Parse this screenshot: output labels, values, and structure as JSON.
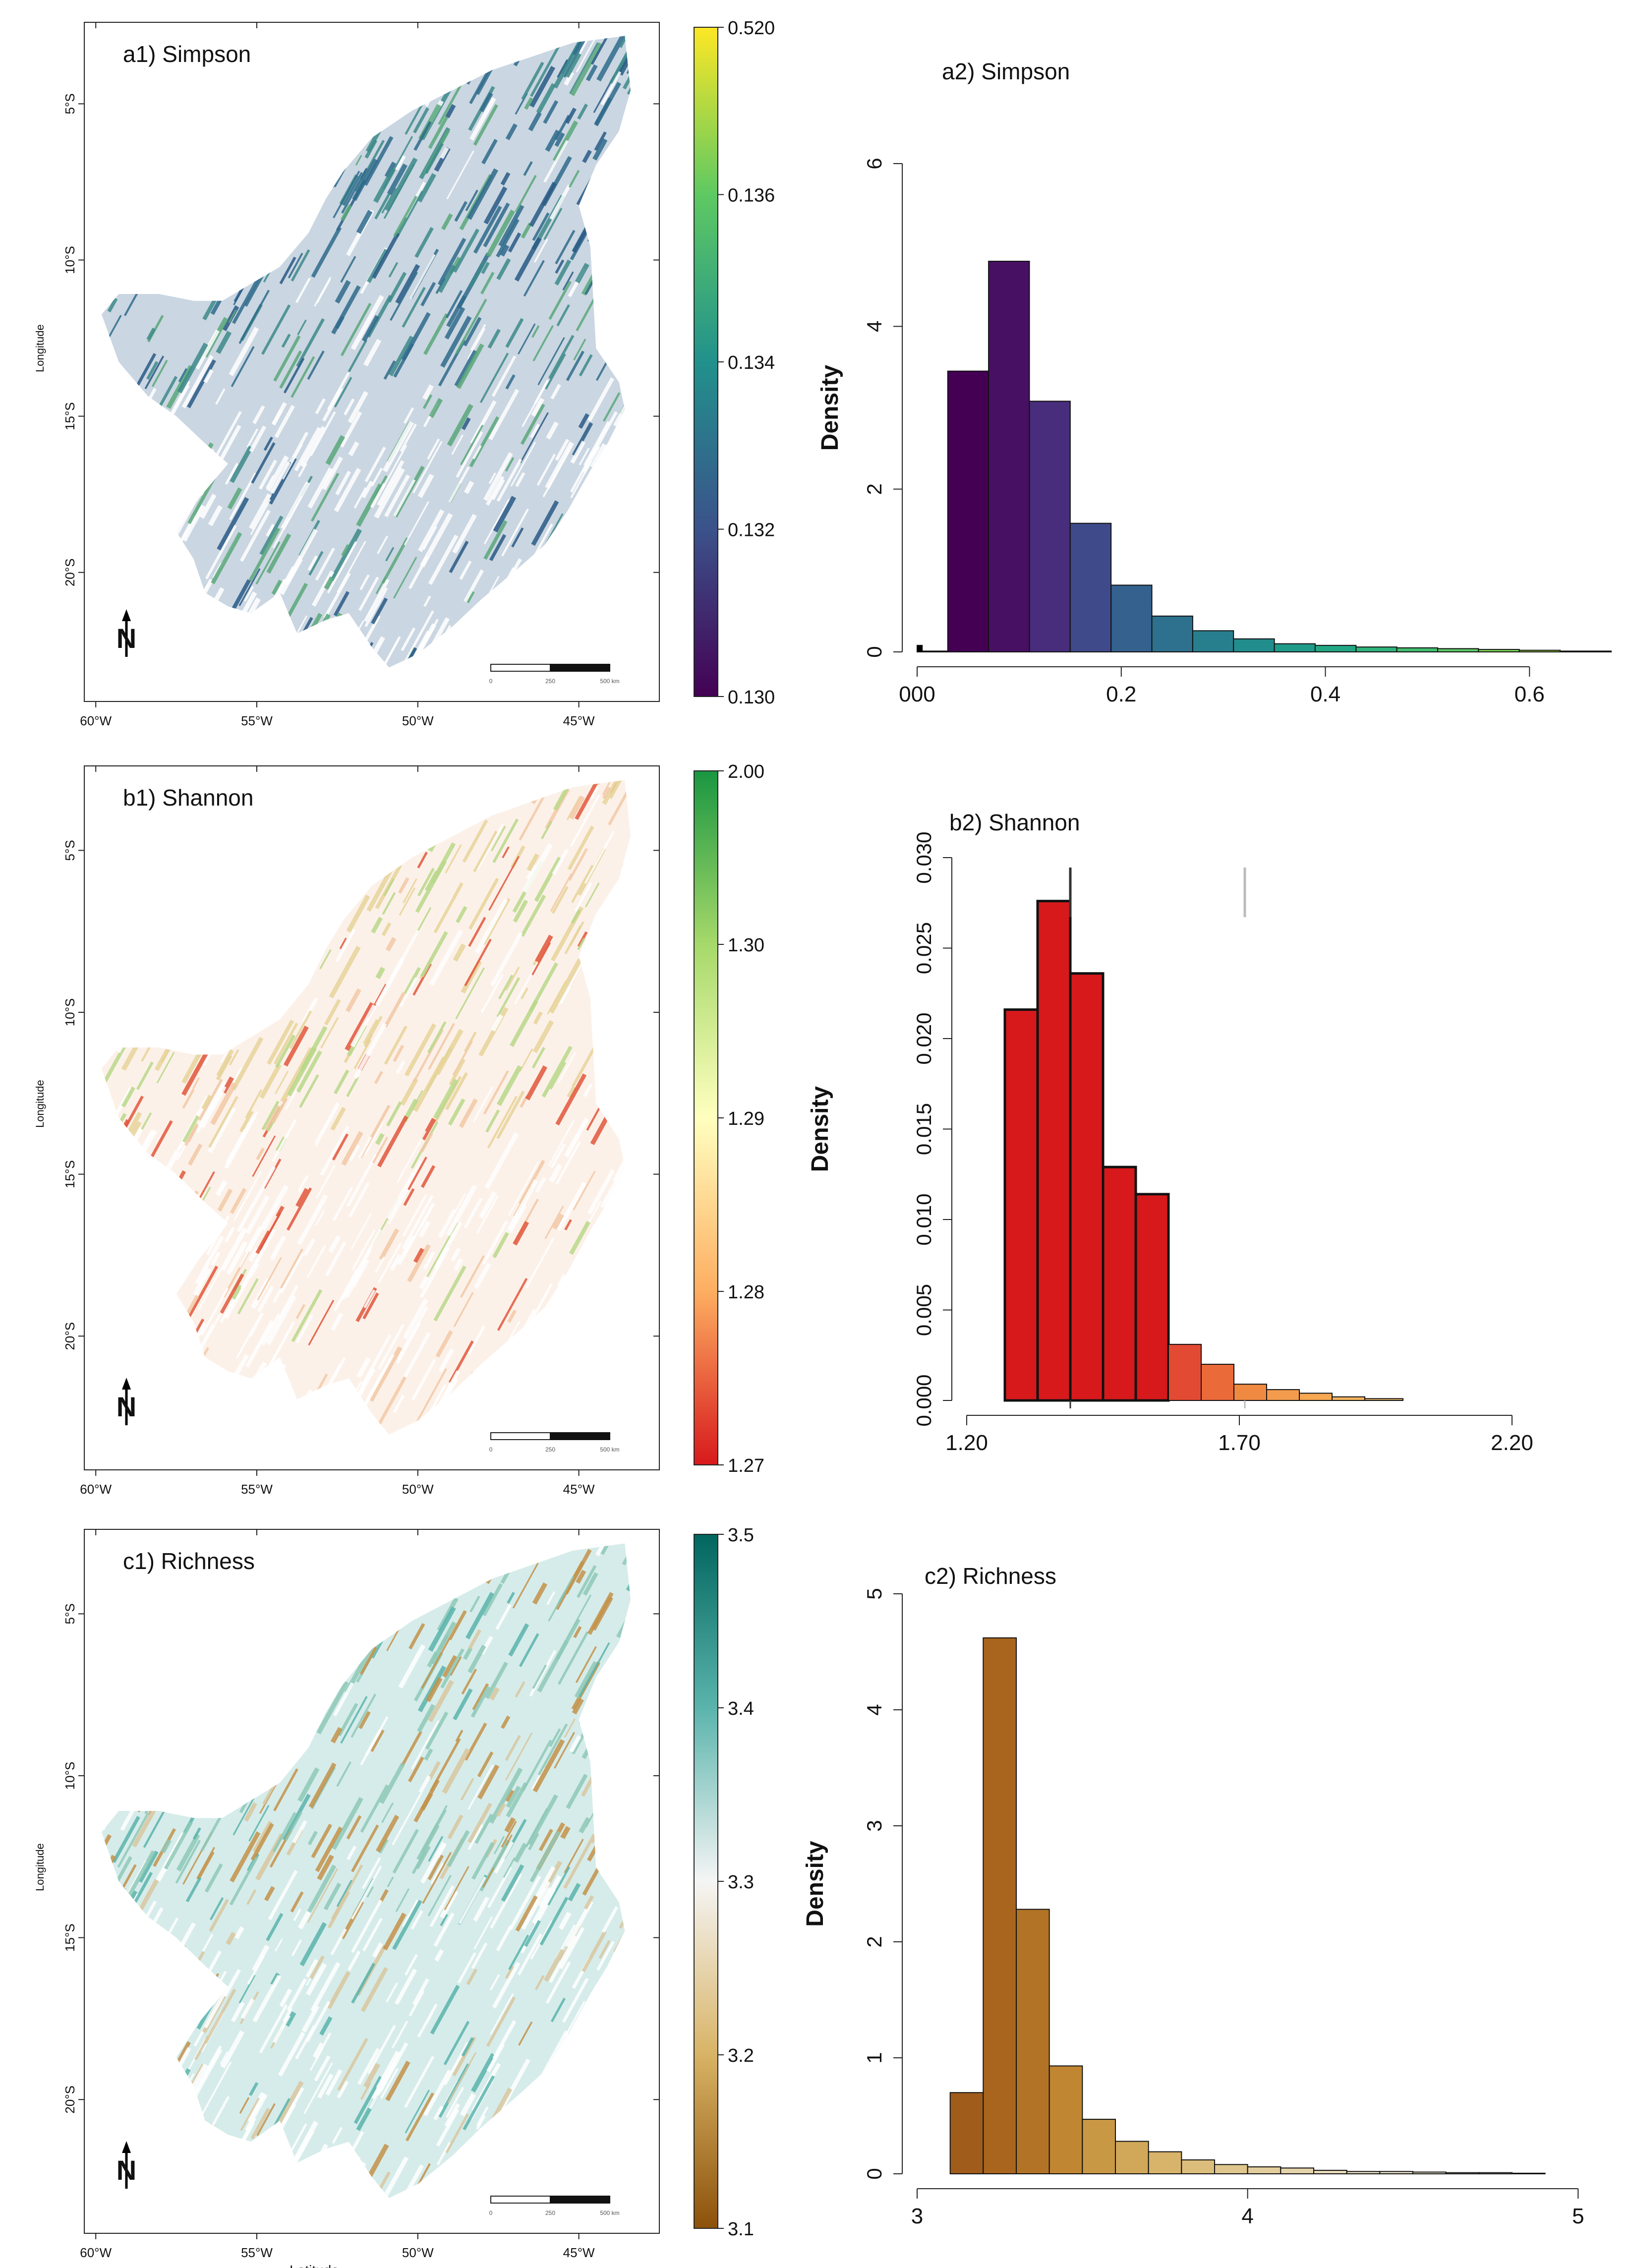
{
  "figure": {
    "panels": [
      {
        "map": {
          "title": "a1) Simpson",
          "ylabel": "Longitude",
          "xlabel": "",
          "lat_ticks": [
            "5°S",
            "10°S",
            "15°S",
            "20°S"
          ],
          "lon_ticks": [
            "60°W",
            "55°W",
            "50°W",
            "45°W"
          ],
          "colorbar": {
            "labels": [
              "0.520",
              "0.136",
              "0.134",
              "0.132",
              "0.130"
            ],
            "colors": [
              "#fde725",
              "#5ec962",
              "#21918c",
              "#3b528b",
              "#440154"
            ]
          },
          "scale_labels": [
            "0",
            "250",
            "500 km"
          ],
          "north_label": "N",
          "palette": [
            "#2f6b8c",
            "#3e8a8a",
            "#5aa87a",
            "#2a5a86",
            "#ffffff"
          ]
        },
        "chart_data": {
          "type": "bar",
          "title": "a2) Simpson",
          "ylabel": "Density",
          "xlabel": "",
          "xlim": [
            0.0,
            0.68
          ],
          "ylim": [
            0,
            6
          ],
          "xticks": [
            0.2,
            0.4,
            0.6
          ],
          "xtick_labels": [
            "0.2",
            "0.4",
            "0.6"
          ],
          "origin_label": "000",
          "yticks": [
            0,
            2,
            4,
            6
          ],
          "ytick_labels": [
            "0",
            "2",
            "4",
            "6"
          ],
          "bin_edges": [
            0.0,
            0.005,
            0.03,
            0.07,
            0.11,
            0.15,
            0.19,
            0.23,
            0.27,
            0.31,
            0.35,
            0.39,
            0.43,
            0.47,
            0.51,
            0.55,
            0.59,
            0.63,
            0.68
          ],
          "values": [
            0.08,
            0.01,
            3.45,
            4.8,
            3.08,
            1.58,
            0.82,
            0.44,
            0.26,
            0.16,
            0.1,
            0.08,
            0.06,
            0.05,
            0.04,
            0.03,
            0.02,
            0.01
          ],
          "colors": [
            "#000000",
            "#36006a",
            "#440154",
            "#471063",
            "#472d7b",
            "#3e4a89",
            "#34618d",
            "#2d718e",
            "#277f8e",
            "#228d8d",
            "#1f9b89",
            "#22a784",
            "#2fb47c",
            "#42be71",
            "#5ac864",
            "#7ad151",
            "#9cd83c",
            "#c0df25"
          ]
        }
      },
      {
        "map": {
          "title": "b1) Shannon",
          "ylabel": "Longitude",
          "xlabel": "",
          "lat_ticks": [
            "5°S",
            "10°S",
            "15°S",
            "20°S"
          ],
          "lon_ticks": [
            "60°W",
            "55°W",
            "50°W",
            "45°W"
          ],
          "colorbar": {
            "labels": [
              "2.00",
              "1.30",
              "1.29",
              "1.28",
              "1.27"
            ],
            "colors": [
              "#1a9641",
              "#a6d96a",
              "#ffffbf",
              "#fdae61",
              "#d7191c"
            ]
          },
          "scale_labels": [
            "0",
            "250",
            "500 km"
          ],
          "north_label": "N",
          "palette": [
            "#e7d49a",
            "#b9d98a",
            "#e2573c",
            "#f2c9a6",
            "#ffffff"
          ]
        },
        "chart_data": {
          "type": "bar",
          "title": "b2) Shannon",
          "ylabel": "Density",
          "xlabel": "",
          "xlim": [
            1.2,
            2.2
          ],
          "ylim": [
            0,
            0.03
          ],
          "xticks": [
            1.2,
            1.7,
            2.2
          ],
          "xtick_labels": [
            "1.20",
            "1.70",
            "2.20"
          ],
          "yticks": [
            0,
            0.005,
            0.01,
            0.015,
            0.02,
            0.025,
            0.03
          ],
          "ytick_labels": [
            "0.000",
            "0.005",
            "0.010",
            "0.015",
            "0.020",
            "0.025",
            "0.030"
          ],
          "bin_edges": [
            1.27,
            1.33,
            1.39,
            1.45,
            1.51,
            1.57,
            1.63,
            1.69,
            1.75,
            1.81,
            1.87,
            1.93,
            2.0
          ],
          "values": [
            0.0216,
            0.0276,
            0.0236,
            0.0129,
            0.0114,
            0.0031,
            0.002,
            0.0009,
            0.0006,
            0.0004,
            0.0002,
            0.0001
          ],
          "colors": [
            "#d7191c",
            "#d7191c",
            "#d7191c",
            "#d7191c",
            "#d7191c",
            "#e34a33",
            "#ea6a3a",
            "#f08a42",
            "#f49c4e",
            "#f7a853",
            "#f8b45e",
            "#f9c06b"
          ],
          "marks": [
            1.39,
            1.71
          ],
          "mark_colors": [
            "#333333",
            "#bbbbbb"
          ]
        }
      },
      {
        "map": {
          "title": "c1) Richness",
          "ylabel": "Longitude",
          "xlabel": "Latitude",
          "lat_ticks": [
            "5°S",
            "10°S",
            "15°S",
            "20°S"
          ],
          "lon_ticks": [
            "60°W",
            "55°W",
            "50°W",
            "45°W"
          ],
          "colorbar": {
            "labels": [
              "3.5",
              "3.4",
              "3.3",
              "3.2",
              "3.1"
            ],
            "colors": [
              "#01665e",
              "#5ab4ac",
              "#f5f5f5",
              "#d8b365",
              "#8c510a"
            ]
          },
          "scale_labels": [
            "0",
            "250",
            "500 km"
          ],
          "north_label": "N",
          "palette": [
            "#8fc9b8",
            "#c4924a",
            "#d9c7a0",
            "#5ab4ac",
            "#ffffff"
          ]
        },
        "chart_data": {
          "type": "bar",
          "title": "c2) Richness",
          "ylabel": "Density",
          "xlabel": "",
          "xlim": [
            3.0,
            5.1
          ],
          "ylim": [
            0,
            5
          ],
          "xticks": [
            3,
            4,
            5
          ],
          "xtick_labels": [
            "3",
            "4",
            "5"
          ],
          "yticks": [
            0,
            1,
            2,
            3,
            4,
            5
          ],
          "ytick_labels": [
            "0",
            "1",
            "2",
            "3",
            "4",
            "5"
          ],
          "bin_edges": [
            3.1,
            3.2,
            3.3,
            3.4,
            3.5,
            3.6,
            3.7,
            3.8,
            3.9,
            4.0,
            4.1,
            4.2,
            4.3,
            4.4,
            4.5,
            4.6,
            4.7,
            4.8,
            4.9
          ],
          "values": [
            0.7,
            4.62,
            2.28,
            0.93,
            0.47,
            0.28,
            0.19,
            0.12,
            0.08,
            0.06,
            0.05,
            0.03,
            0.02,
            0.02,
            0.015,
            0.01,
            0.01,
            0.005
          ],
          "colors": [
            "#a05c1a",
            "#a9651e",
            "#b37326",
            "#c08632",
            "#c99845",
            "#d1a85a",
            "#d8b46a",
            "#dcbe7c",
            "#dfc68d",
            "#e2cd9d",
            "#e5d4ab",
            "#e8dab8",
            "#eadfc3",
            "#ece3cc",
            "#eee7d5",
            "#f0eadc",
            "#f2ede2",
            "#f4f0e8"
          ]
        }
      }
    ]
  }
}
